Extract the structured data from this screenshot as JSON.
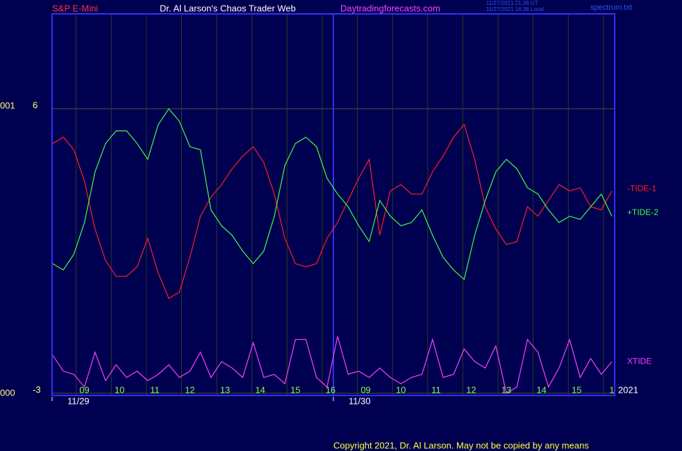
{
  "chart_data": {
    "type": "line",
    "title": "Dr. Al Larson's Chaos Trader Web",
    "instrument": "S&P E-Mini",
    "site": "Daytradingforecasts.com",
    "timestamps": [
      "11/27/2021 21:36 UT",
      "11/27/2021 16:36 Local"
    ],
    "file": "spectrum.txt",
    "left_labels": [
      "001",
      "000"
    ],
    "year": "2021",
    "copyright": "Copyright 2021, Dr. Al Larson. May not be copied by any means",
    "xlim": [
      0.08,
      16.08
    ],
    "xticks": [
      {
        "value": 1,
        "label": "09"
      },
      {
        "value": 2,
        "label": "10"
      },
      {
        "value": 3,
        "label": "11"
      },
      {
        "value": 4,
        "label": "12"
      },
      {
        "value": 5,
        "label": "13"
      },
      {
        "value": 6,
        "label": "14"
      },
      {
        "value": 7,
        "label": "15"
      },
      {
        "value": 8,
        "label": "16"
      },
      {
        "value": 9,
        "label": "09"
      },
      {
        "value": 10,
        "label": "10"
      },
      {
        "value": 11,
        "label": "11"
      },
      {
        "value": 12,
        "label": "12"
      },
      {
        "value": 13,
        "label": "13"
      },
      {
        "value": 14,
        "label": "14"
      },
      {
        "value": 15,
        "label": "15"
      },
      {
        "value": 16,
        "label": "1"
      }
    ],
    "day_ticks": [
      {
        "value": 0.08,
        "label": "11/29"
      },
      {
        "value": 8.08,
        "label": "11/30"
      }
    ],
    "ylim": [
      -3.07,
      9.0
    ],
    "yticks": [
      -3,
      6
    ],
    "grid": true,
    "x": [
      0.1,
      0.4,
      0.7,
      1.0,
      1.3,
      1.6,
      1.9,
      2.2,
      2.5,
      2.8,
      3.1,
      3.4,
      3.7,
      4.0,
      4.3,
      4.6,
      4.9,
      5.2,
      5.5,
      5.8,
      6.1,
      6.4,
      6.7,
      7.0,
      7.3,
      7.6,
      7.9,
      8.2,
      8.5,
      8.8,
      9.1,
      9.4,
      9.7,
      10.0,
      10.3,
      10.6,
      10.9,
      11.2,
      11.5,
      11.8,
      12.1,
      12.4,
      12.7,
      13.0,
      13.3,
      13.6,
      13.9,
      14.2,
      14.5,
      14.8,
      15.1,
      15.4,
      15.7,
      16.0
    ],
    "series": [
      {
        "name": "-TIDE-1",
        "color": "#ff2020",
        "values": [
          4.9,
          5.1,
          4.7,
          3.7,
          2.2,
          1.2,
          0.7,
          0.7,
          1.0,
          1.9,
          0.8,
          0.0,
          0.2,
          1.3,
          2.6,
          3.2,
          3.6,
          4.1,
          4.5,
          4.8,
          4.3,
          3.3,
          1.9,
          1.1,
          1.0,
          1.1,
          1.9,
          2.4,
          3.1,
          3.8,
          4.4,
          2.0,
          3.4,
          3.6,
          3.3,
          3.3,
          4.0,
          4.5,
          5.1,
          5.5,
          4.4,
          2.9,
          2.2,
          1.7,
          1.8,
          2.9,
          2.6,
          3.1,
          3.6,
          3.4,
          3.5,
          2.9,
          2.8,
          3.4
        ]
      },
      {
        "name": "+TIDE-2",
        "color": "#40ff40",
        "values": [
          1.1,
          0.9,
          1.4,
          2.4,
          4.0,
          4.9,
          5.3,
          5.3,
          4.9,
          4.4,
          5.5,
          6.0,
          5.6,
          4.8,
          4.7,
          2.8,
          2.3,
          2.0,
          1.5,
          1.1,
          1.5,
          2.6,
          4.2,
          4.9,
          5.1,
          4.8,
          3.8,
          3.3,
          2.9,
          2.3,
          1.8,
          3.1,
          2.6,
          2.3,
          2.4,
          2.8,
          2.0,
          1.3,
          0.9,
          0.6,
          2.0,
          3.1,
          4.0,
          4.4,
          4.1,
          3.5,
          3.3,
          2.8,
          2.4,
          2.6,
          2.5,
          2.9,
          3.3,
          2.6
        ]
      },
      {
        "name": "XTIDE",
        "color": "#ff40ff",
        "values": [
          -1.8,
          -2.3,
          -2.4,
          -2.8,
          -1.7,
          -2.6,
          -2.1,
          -2.5,
          -2.3,
          -2.6,
          -2.4,
          -2.1,
          -2.5,
          -2.3,
          -1.7,
          -2.5,
          -2.0,
          -2.2,
          -2.5,
          -1.4,
          -2.5,
          -2.4,
          -2.7,
          -1.3,
          -1.3,
          -2.5,
          -2.8,
          -1.2,
          -2.4,
          -2.3,
          -2.5,
          -2.2,
          -2.5,
          -2.7,
          -2.5,
          -2.4,
          -1.3,
          -2.5,
          -2.4,
          -1.6,
          -2.0,
          -2.2,
          -1.5,
          -3.0,
          -2.8,
          -1.3,
          -1.7,
          -2.8,
          -2.2,
          -1.3,
          -2.5,
          -1.9,
          -2.4,
          -2.0
        ]
      }
    ]
  }
}
